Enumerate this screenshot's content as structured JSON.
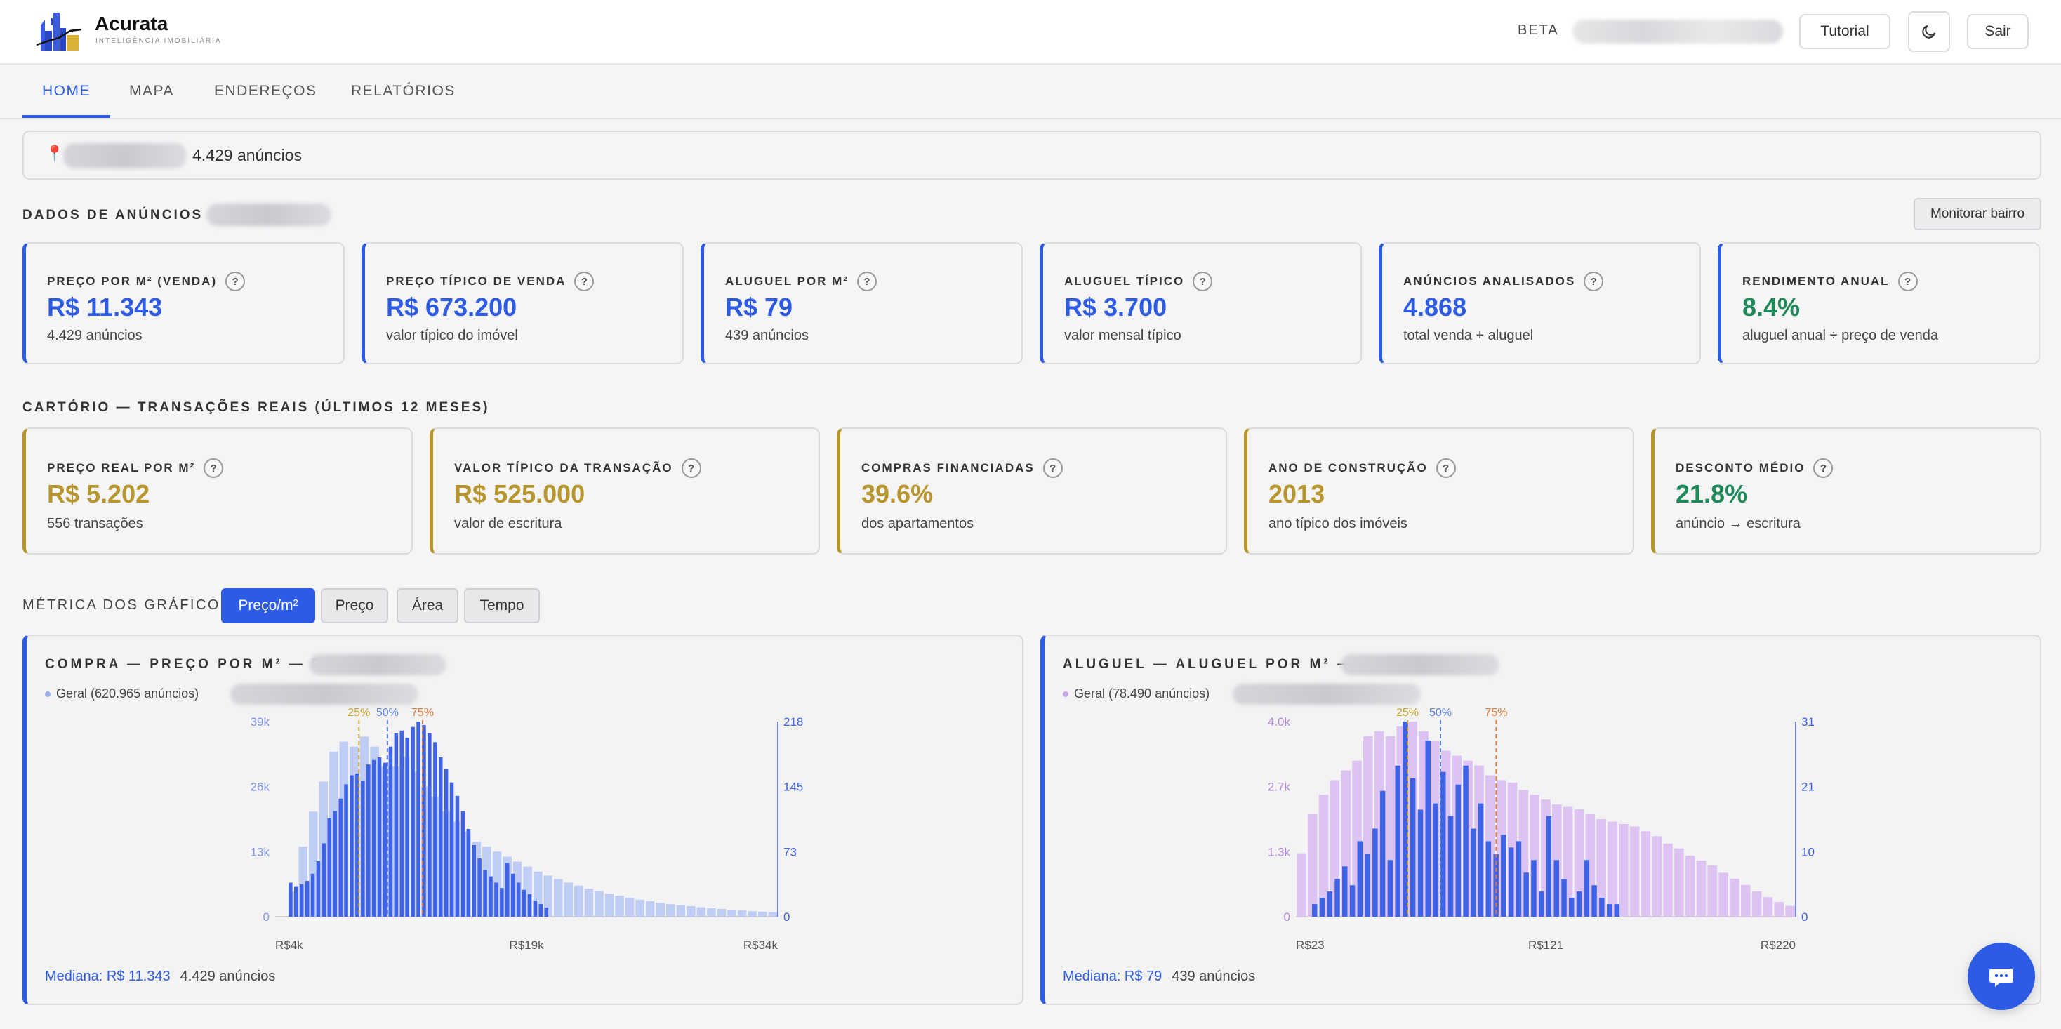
{
  "header": {
    "brand": "Acurata",
    "tagline": "INTELIGÊNCIA IMOBILIÁRIA",
    "beta": "BETA",
    "tutorial": "Tutorial",
    "logout": "Sair"
  },
  "nav": {
    "tabs": [
      "HOME",
      "MAPA",
      "ENDEREÇOS",
      "RELATÓRIOS"
    ],
    "active": "HOME"
  },
  "location": {
    "count_text": "4.429 anúncios"
  },
  "listings": {
    "title": "DADOS DE ANÚNCIOS",
    "monitor_button": "Monitorar bairro",
    "cards": [
      {
        "label": "PREÇO POR M² (VENDA)",
        "value": "R$ 11.343",
        "sub": "4.429 anúncios",
        "color": "#2d5be3"
      },
      {
        "label": "PREÇO TÍPICO DE VENDA",
        "value": "R$ 673.200",
        "sub": "valor típico do imóvel",
        "color": "#2d5be3"
      },
      {
        "label": "ALUGUEL POR M²",
        "value": "R$ 79",
        "sub": "439 anúncios",
        "color": "#2d5be3"
      },
      {
        "label": "ALUGUEL TÍPICO",
        "value": "R$ 3.700",
        "sub": "valor mensal típico",
        "color": "#2d5be3"
      },
      {
        "label": "ANÚNCIOS ANALISADOS",
        "value": "4.868",
        "sub": "total venda + aluguel",
        "color": "#2d5be3"
      },
      {
        "label": "RENDIMENTO ANUAL",
        "value": "8.4%",
        "sub": "aluguel anual ÷ preço de venda",
        "color": "#1e8a5a"
      }
    ]
  },
  "registry": {
    "title": "CARTÓRIO — TRANSAÇÕES REAIS (ÚLTIMOS 12 MESES)",
    "cards": [
      {
        "label": "PREÇO REAL POR M²",
        "value": "R$ 5.202",
        "sub": "556 transações",
        "color": "#b8962e"
      },
      {
        "label": "VALOR TÍPICO DA TRANSAÇÃO",
        "value": "R$ 525.000",
        "sub": "valor de escritura",
        "color": "#b8962e"
      },
      {
        "label": "COMPRAS FINANCIADAS",
        "value": "39.6%",
        "sub": "dos apartamentos",
        "color": "#b8962e"
      },
      {
        "label": "ANO DE CONSTRUÇÃO",
        "value": "2013",
        "sub": "ano típico dos imóveis",
        "color": "#b8962e"
      },
      {
        "label": "DESCONTO MÉDIO",
        "value": "21.8%",
        "sub": "anúncio → escritura",
        "color": "#1e8a5a"
      }
    ]
  },
  "metric_selector": {
    "label": "MÉTRICA DOS GRÁFICOS:",
    "options": [
      "Preço/m²",
      "Preço",
      "Área",
      "Tempo"
    ],
    "active": "Preço/m²"
  },
  "colors": {
    "accent": "#2d5be3",
    "gold": "#b8962e",
    "green": "#1e8a5a",
    "q25": "#c9a227",
    "q50": "#5b7fe8",
    "q75": "#e07a3a"
  },
  "chart_data": [
    {
      "type": "bar",
      "title": "COMPRA — PREÇO POR M² — B",
      "legend": "Geral (620.965 anúncios)",
      "x_tick_labels": [
        "R$4k",
        "R$19k",
        "R$34k"
      ],
      "xlim": [
        4000,
        34000
      ],
      "y_left_ticks": [
        "0",
        "13k",
        "26k",
        "39k"
      ],
      "y_left_lim": [
        0,
        39000
      ],
      "y_right_ticks": [
        "0",
        "73",
        "145",
        "218"
      ],
      "y_right_lim": [
        0,
        218
      ],
      "quantile_labels": [
        "25%",
        "50%",
        "75%"
      ],
      "quantiles": [
        9000,
        10700,
        12800
      ],
      "series": [
        {
          "axis": "left",
          "color": "#bfcdf5",
          "values": [
            5000,
            14000,
            21000,
            27000,
            33000,
            35000,
            34000,
            36000,
            34000,
            30000,
            30000,
            32000,
            29000,
            26000,
            24000,
            21000,
            19000,
            17000,
            15000,
            14000,
            13000,
            12000,
            11000,
            10000,
            9000,
            8200,
            7500,
            6800,
            6200,
            5600,
            5100,
            4600,
            4200,
            3800,
            3400,
            3100,
            2800,
            2500,
            2300,
            2100,
            1900,
            1700,
            1550,
            1400,
            1250,
            1100,
            1000,
            900
          ]
        },
        {
          "axis": "right",
          "color": "#3f63e6",
          "values": [
            38,
            34,
            36,
            40,
            48,
            62,
            82,
            110,
            118,
            132,
            148,
            158,
            160,
            152,
            170,
            175,
            178,
            172,
            190,
            205,
            208,
            200,
            212,
            218,
            214,
            205,
            195,
            178,
            165,
            150,
            135,
            118,
            98,
            80,
            65,
            52,
            45,
            38,
            32,
            60,
            48,
            38,
            30,
            25,
            18,
            14,
            10
          ]
        }
      ],
      "median_text": "Mediana: R$ 11.343",
      "count_text": "4.429 anúncios"
    },
    {
      "type": "bar",
      "title": "ALUGUEL — ALUGUEL POR M² —",
      "legend": "Geral (78.490 anúncios)",
      "x_tick_labels": [
        "R$23",
        "R$121",
        "R$220"
      ],
      "xlim": [
        23,
        220
      ],
      "y_left_ticks": [
        "0",
        "1.3k",
        "2.7k",
        "4.0k"
      ],
      "y_left_lim": [
        0,
        4000
      ],
      "y_right_ticks": [
        "0",
        "10",
        "21",
        "31"
      ],
      "y_right_lim": [
        0,
        31
      ],
      "quantile_labels": [
        "25%",
        "50%",
        "75%"
      ],
      "quantiles": [
        67,
        80,
        102
      ],
      "series": [
        {
          "axis": "left",
          "color": "#dcc3f2",
          "values": [
            1300,
            2100,
            2500,
            2800,
            3000,
            3200,
            3700,
            3800,
            3700,
            3900,
            4000,
            3800,
            3600,
            3400,
            3300,
            3200,
            3100,
            2900,
            2800,
            2750,
            2600,
            2500,
            2400,
            2300,
            2250,
            2200,
            2100,
            2000,
            1950,
            1900,
            1850,
            1750,
            1650,
            1500,
            1400,
            1250,
            1150,
            1050,
            900,
            780,
            650,
            520,
            400,
            300,
            220
          ]
        },
        {
          "axis": "right",
          "color": "#3f63e6",
          "values": [
            2,
            3,
            4,
            6,
            8,
            5,
            12,
            10,
            14,
            20,
            9,
            24,
            31,
            22,
            17,
            28,
            18,
            23,
            16,
            21,
            24,
            14,
            18,
            12,
            10,
            13,
            11,
            12,
            7,
            9,
            4,
            16,
            9,
            6,
            3,
            4,
            9,
            5,
            3,
            2,
            2
          ]
        }
      ],
      "median_text": "Mediana: R$ 79",
      "count_text": "439 anúncios"
    }
  ]
}
